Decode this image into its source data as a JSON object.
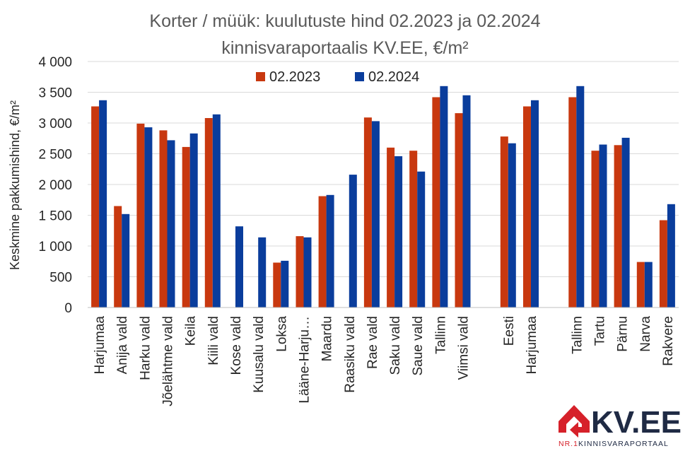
{
  "chart_data": {
    "type": "bar",
    "title_line1": "Korter / müük: kuulutuste hind 02.2023 ja 02.2024",
    "title_line2": "kinnisvaraportaalis KV.EE, €/m²",
    "ylabel": "Keskmine pakkumishind, €/m²",
    "ylim": [
      0,
      4000
    ],
    "yticks": [
      {
        "value": 0,
        "label": "0"
      },
      {
        "value": 500,
        "label": "500"
      },
      {
        "value": 1000,
        "label": "1 000"
      },
      {
        "value": 1500,
        "label": "1 500"
      },
      {
        "value": 2000,
        "label": "2 000"
      },
      {
        "value": 2500,
        "label": "2 500"
      },
      {
        "value": 3000,
        "label": "3 000"
      },
      {
        "value": 3500,
        "label": "3 500"
      },
      {
        "value": 4000,
        "label": "4 000"
      }
    ],
    "legend_position": "top-center",
    "categories": [
      "Harjumaa",
      "Anija vald",
      "Harku vald",
      "Jõelähtme vald",
      "Keila",
      "Kiili vald",
      "Kose vald",
      "Kuusalu vald",
      "Loksa",
      "Lääne-Harju…",
      "Maardu",
      "Raasiku vald",
      "Rae vald",
      "Saku vald",
      "Saue vald",
      "Tallinn",
      "Viimsi vald",
      "",
      "Eesti",
      "Harjumaa",
      "",
      "Tallinn",
      "Tartu",
      "Pärnu",
      "Narva",
      "Rakvere"
    ],
    "series": [
      {
        "name": "02.2023",
        "color": "#c8380f",
        "values": [
          3270,
          1650,
          2990,
          2880,
          2610,
          3080,
          null,
          null,
          730,
          1160,
          1810,
          null,
          3090,
          2600,
          2550,
          3420,
          3160,
          null,
          2780,
          3270,
          null,
          3420,
          2550,
          2640,
          740,
          1420
        ]
      },
      {
        "name": "02.2024",
        "color": "#0a3d9c",
        "values": [
          3370,
          1520,
          2930,
          2720,
          2830,
          3140,
          1320,
          1140,
          760,
          1140,
          1830,
          2160,
          3030,
          2460,
          2210,
          3600,
          3450,
          null,
          2670,
          3370,
          null,
          3600,
          2650,
          2760,
          740,
          1680
        ]
      }
    ]
  },
  "logo": {
    "main": "KV.EE",
    "sub_prefix": "NR.1",
    "sub_text": "KINNISVARAPORTAAL",
    "brand_red": "#d6212a",
    "brand_dark": "#1f2a44"
  }
}
